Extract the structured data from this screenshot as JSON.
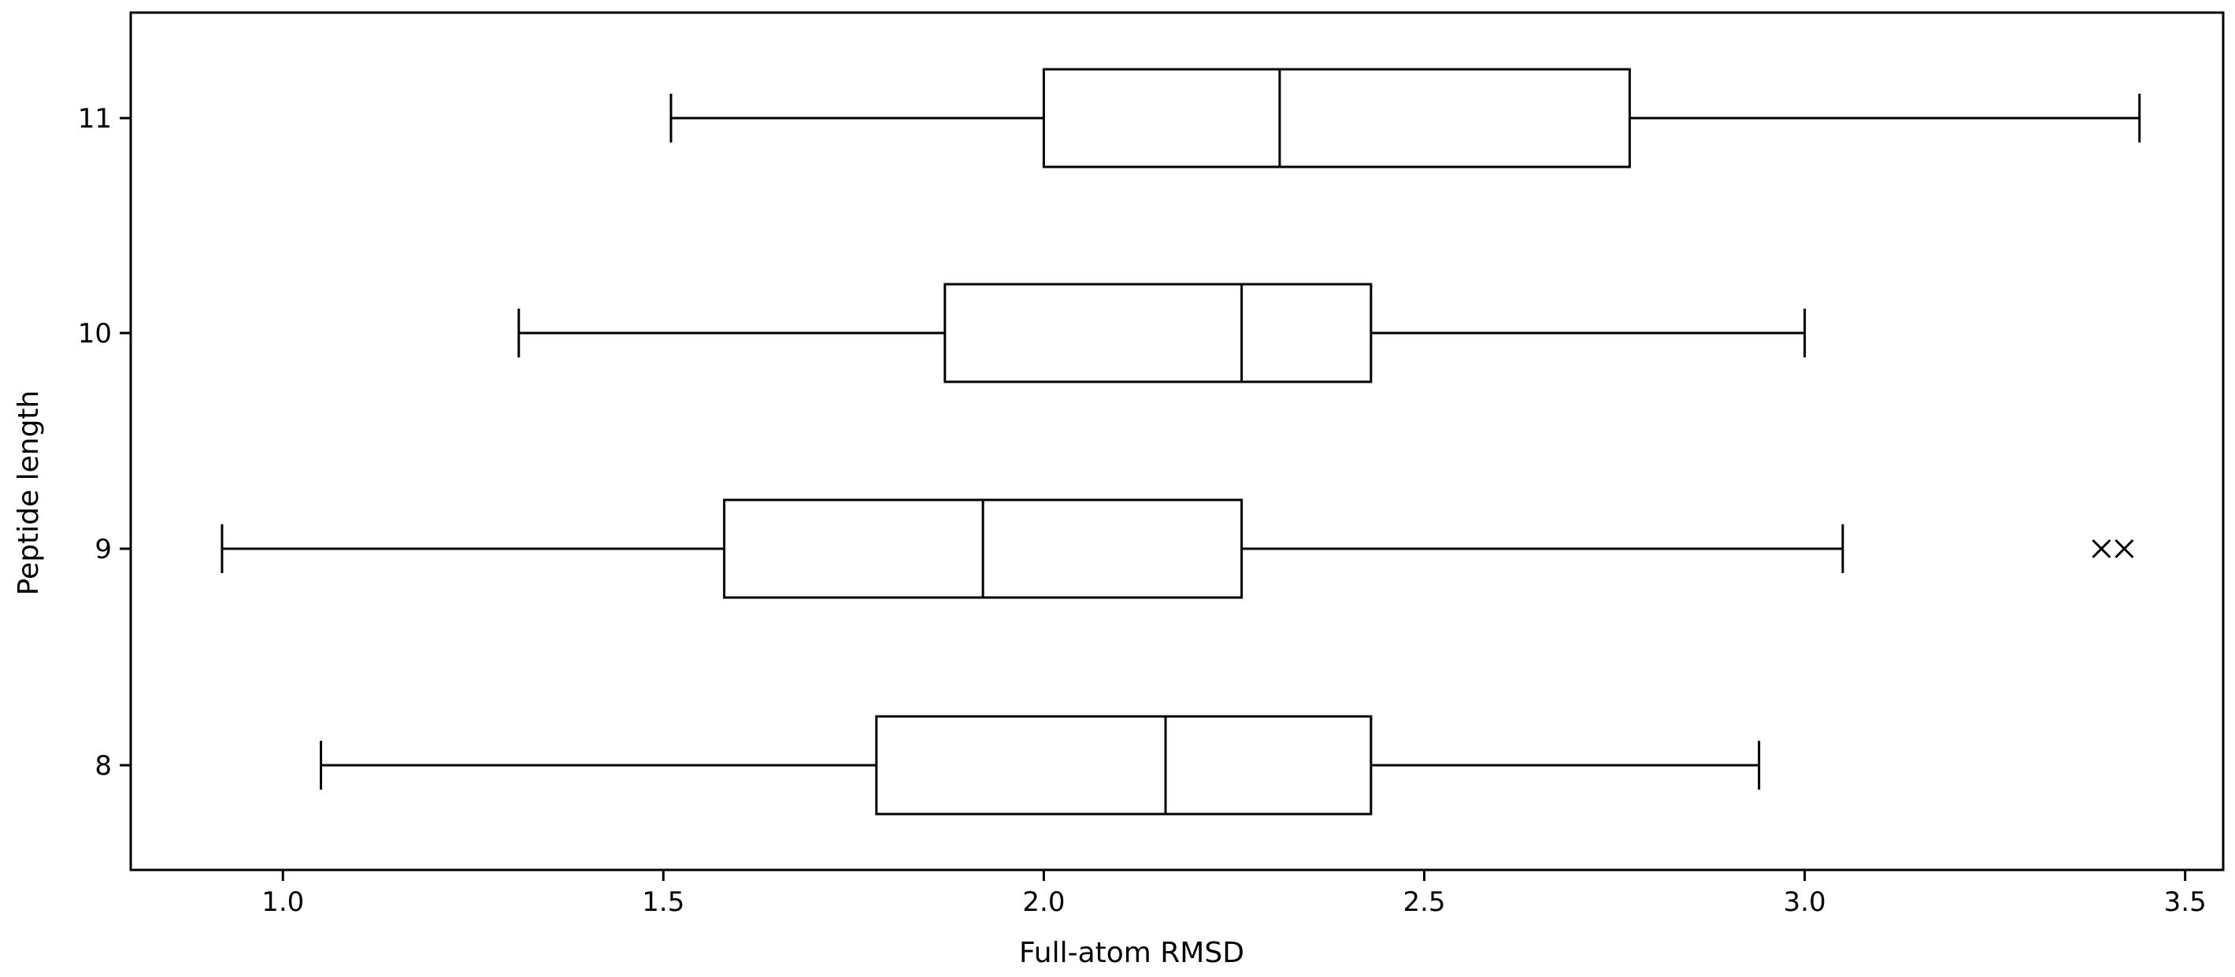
{
  "chart_data": {
    "type": "boxplot",
    "orientation": "horizontal",
    "title": "",
    "xlabel": "Full-atom RMSD",
    "ylabel": "Peptide length",
    "xlim": [
      0.8,
      3.55
    ],
    "xticks": [
      {
        "value": 1.0,
        "label": "1.0"
      },
      {
        "value": 1.5,
        "label": "1.5"
      },
      {
        "value": 2.0,
        "label": "2.0"
      },
      {
        "value": 2.5,
        "label": "2.5"
      },
      {
        "value": 3.0,
        "label": "3.0"
      },
      {
        "value": 3.5,
        "label": "3.5"
      }
    ],
    "categories": [
      "8",
      "9",
      "10",
      "11"
    ],
    "boxes": [
      {
        "category": "8",
        "whisker_low": 1.05,
        "q1": 1.78,
        "median": 2.16,
        "q3": 2.43,
        "whisker_high": 2.94,
        "outliers": []
      },
      {
        "category": "9",
        "whisker_low": 0.92,
        "q1": 1.58,
        "median": 1.92,
        "q3": 2.26,
        "whisker_high": 3.05,
        "outliers": [
          3.39,
          3.42
        ]
      },
      {
        "category": "10",
        "whisker_low": 1.31,
        "q1": 1.87,
        "median": 2.26,
        "q3": 2.43,
        "whisker_high": 3.0,
        "outliers": []
      },
      {
        "category": "11",
        "whisker_low": 1.51,
        "q1": 2.0,
        "median": 2.31,
        "q3": 2.77,
        "whisker_high": 3.44,
        "outliers": []
      }
    ],
    "grid": false,
    "legend": "none",
    "colors": {
      "line": "#000000",
      "box_fill": "#ffffff",
      "background": "#ffffff"
    }
  }
}
